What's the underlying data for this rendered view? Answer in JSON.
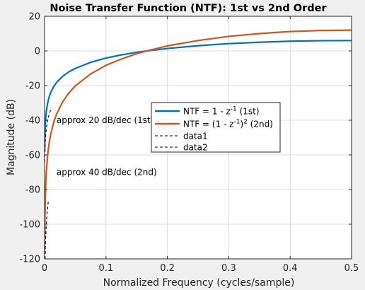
{
  "chart_data": {
    "type": "line",
    "title": "Noise Transfer Function (NTF): 1st vs 2nd Order",
    "xlabel": "Normalized Frequency (cycles/sample)",
    "ylabel": "Magnitude (dB)",
    "xlim": [
      0,
      0.5
    ],
    "ylim": [
      -120,
      20
    ],
    "xticks": [
      "0",
      "0.1",
      "0.2",
      "0.3",
      "0.4",
      "0.5"
    ],
    "yticks": [
      "20",
      "0",
      "-20",
      "-40",
      "-60",
      "-80",
      "-100",
      "-120"
    ],
    "grid": true,
    "legend_position": "center-right",
    "series": [
      {
        "name": "NTF = 1 - z^-1 (1st)",
        "legend_parts": [
          "NTF = 1 - z",
          "-1",
          " (1st)"
        ],
        "color": "#0072BD",
        "style": "solid",
        "x": [
          0.0002,
          0.0005,
          0.001,
          0.002,
          0.003,
          0.005,
          0.0075,
          0.01,
          0.015,
          0.02,
          0.03,
          0.04,
          0.05,
          0.075,
          0.1,
          0.125,
          0.15,
          0.1667,
          0.2,
          0.25,
          0.3,
          0.35,
          0.4,
          0.45,
          0.5
        ],
        "values": [
          -58.0,
          -50.1,
          -44.0,
          -38.0,
          -34.5,
          -30.1,
          -26.5,
          -24.0,
          -20.5,
          -18.0,
          -14.5,
          -12.0,
          -10.1,
          -6.6,
          -4.1,
          -2.3,
          -0.8,
          0.0,
          1.4,
          3.0,
          4.2,
          5.0,
          5.6,
          5.9,
          6.0
        ]
      },
      {
        "name": "NTF = (1 - z^-1)^2 (2nd)",
        "legend_parts": [
          "NTF = (1 - z",
          "-1",
          ")",
          "2",
          " (2nd)"
        ],
        "color": "#D95319",
        "style": "solid",
        "x": [
          0.0002,
          0.0005,
          0.001,
          0.002,
          0.003,
          0.005,
          0.0075,
          0.01,
          0.015,
          0.02,
          0.03,
          0.04,
          0.05,
          0.075,
          0.1,
          0.125,
          0.15,
          0.1667,
          0.2,
          0.25,
          0.3,
          0.35,
          0.4,
          0.45,
          0.5
        ],
        "values": [
          -116.1,
          -100.1,
          -88.1,
          -76.1,
          -69.0,
          -60.1,
          -53.1,
          -48.1,
          -41.0,
          -36.1,
          -29.1,
          -24.1,
          -20.2,
          -13.3,
          -8.3,
          -4.7,
          -1.6,
          0.0,
          2.9,
          6.0,
          8.4,
          10.0,
          11.2,
          11.8,
          12.0
        ]
      },
      {
        "name": "data1",
        "legend_parts": [
          "data1"
        ],
        "color": "#000000",
        "style": "dashed",
        "x": [
          0.0003,
          0.0006,
          0.0012,
          0.0025,
          0.005,
          0.008,
          0.011
        ],
        "values": [
          -64,
          -58,
          -52,
          -46,
          -40,
          -36,
          -33
        ]
      },
      {
        "name": "data2",
        "legend_parts": [
          "data2"
        ],
        "color": "#000000",
        "style": "dashed",
        "x": [
          0.0009,
          0.0014,
          0.002,
          0.003,
          0.0045,
          0.006
        ],
        "values": [
          -120,
          -112,
          -106,
          -99,
          -92,
          -87
        ]
      }
    ],
    "annotations": [
      {
        "text": "approx 20 dB/dec (1st)",
        "x": 0.0195,
        "y": -40
      },
      {
        "text": "approx 40 dB/dec (2nd)",
        "x": 0.0195,
        "y": -70
      }
    ]
  }
}
